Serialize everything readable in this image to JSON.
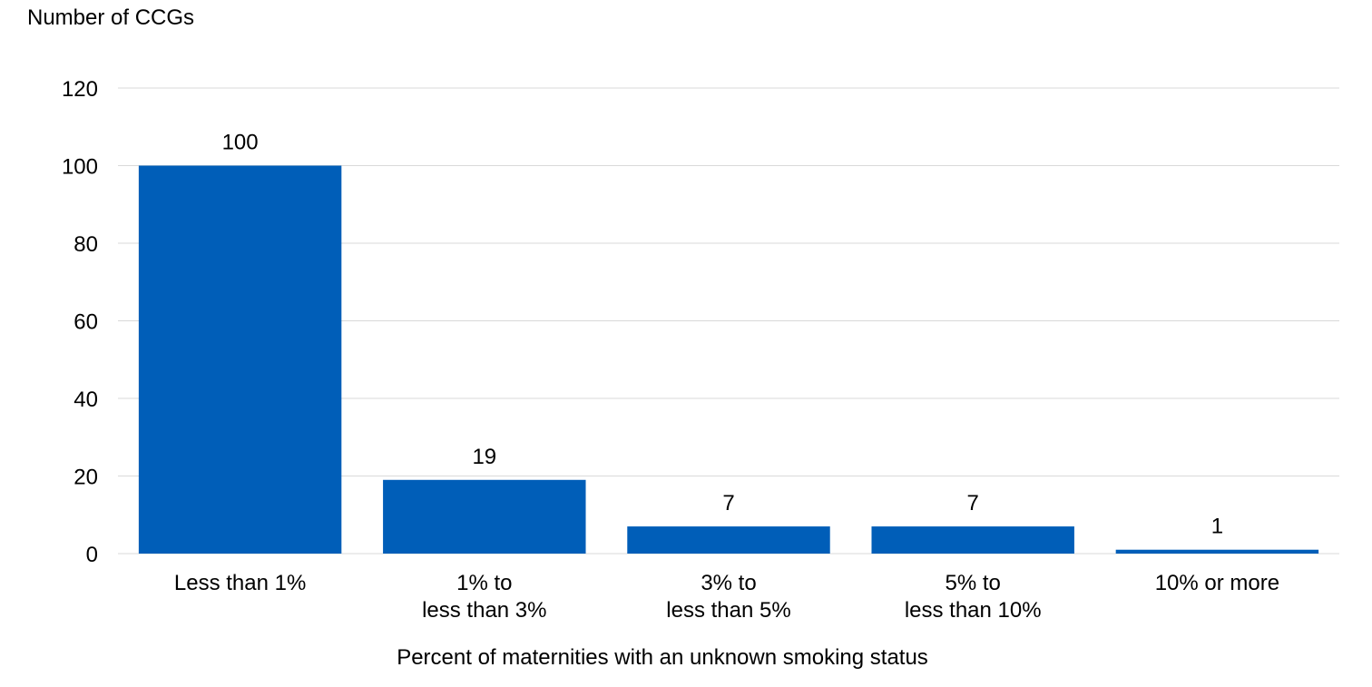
{
  "chart_data": {
    "type": "bar",
    "title": "",
    "ylabel": "Number of CCGs",
    "xlabel": "Percent of maternities with an unknown smoking status",
    "categories": [
      [
        "Less than 1%"
      ],
      [
        "1% to",
        "less than 3%"
      ],
      [
        "3% to",
        "less than 5%"
      ],
      [
        "5% to",
        "less than 10%"
      ],
      [
        "10% or more"
      ]
    ],
    "values": [
      100,
      19,
      7,
      7,
      1
    ],
    "data_labels": [
      "100",
      "19",
      "7",
      "7",
      "1"
    ],
    "ylim": [
      0,
      120
    ],
    "yticks": [
      0,
      20,
      40,
      60,
      80,
      100,
      120
    ],
    "grid": true,
    "legend": "none",
    "colors": {
      "bar": "#005EB8",
      "grid": "#D9D9D9"
    }
  }
}
